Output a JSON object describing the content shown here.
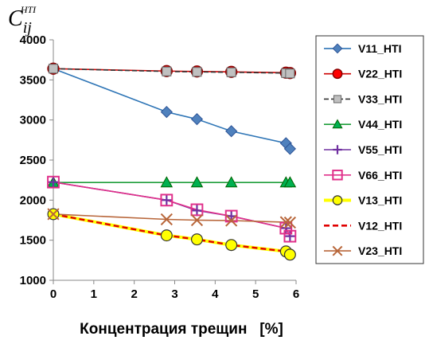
{
  "chart_data": {
    "type": "line",
    "ylabel": {
      "base": "C",
      "sub": "ij",
      "sup": "HTI"
    },
    "xlabel": "Концентрация трещин   [%]",
    "xlim": [
      0,
      6
    ],
    "ylim": [
      1000,
      4000
    ],
    "xticks": [
      0,
      1,
      2,
      3,
      4,
      5,
      6
    ],
    "yticks": [
      1000,
      1500,
      2000,
      2500,
      3000,
      3500,
      4000
    ],
    "grid": false,
    "legend_position": "right",
    "series": [
      {
        "name": "V11_HTI",
        "color": "#2e75b6",
        "marker": "diamond",
        "dash": "",
        "fill": "#4f81bd",
        "x": [
          0,
          2.8,
          3.55,
          4.4,
          5.75,
          5.85
        ],
        "y": [
          3640,
          3100,
          3010,
          2860,
          2710,
          2640
        ]
      },
      {
        "name": "V22_HTI",
        "color": "#cc0000",
        "marker": "circle",
        "dash": "",
        "fill": "#ff0000",
        "x": [
          0,
          2.8,
          3.55,
          4.4,
          5.75,
          5.85
        ],
        "y": [
          3640,
          3610,
          3605,
          3600,
          3590,
          3585
        ]
      },
      {
        "name": "V33_HTI",
        "color": "#333333",
        "marker": "square",
        "dash": "6,3",
        "fill": "#c0c0c0",
        "x": [
          0,
          2.8,
          3.55,
          4.4,
          5.75,
          5.85
        ],
        "y": [
          3640,
          3605,
          3600,
          3595,
          3585,
          3580
        ]
      },
      {
        "name": "V44_HTI",
        "color": "#1e9e3a",
        "marker": "triangle",
        "dash": "",
        "fill": "#00b050",
        "x": [
          0,
          2.8,
          3.55,
          4.4,
          5.75,
          5.85
        ],
        "y": [
          2220,
          2220,
          2220,
          2220,
          2220,
          2220
        ]
      },
      {
        "name": "V55_HTI",
        "color": "#7030a0",
        "marker": "plus",
        "dash": "",
        "fill": "#7030a0",
        "x": [
          0,
          2.8,
          3.55,
          4.4,
          5.75,
          5.85
        ],
        "y": [
          2225,
          2000,
          1870,
          1800,
          1650,
          1550
        ]
      },
      {
        "name": "V66_HTI",
        "color": "#e0308a",
        "marker": "opensquare",
        "dash": "",
        "fill": "none",
        "x": [
          0,
          2.8,
          3.55,
          4.4,
          5.75,
          5.85
        ],
        "y": [
          2225,
          2000,
          1880,
          1800,
          1650,
          1550
        ]
      },
      {
        "name": "V13_HTI",
        "color": "#ffff00",
        "marker": "yellowcircle",
        "dash": "",
        "fill": "#ffff00",
        "x": [
          0,
          2.8,
          3.55,
          4.4,
          5.75,
          5.85
        ],
        "y": [
          1825,
          1560,
          1510,
          1440,
          1360,
          1320
        ]
      },
      {
        "name": "V12_HTI",
        "color": "#e00000",
        "marker": "none",
        "dash": "7,4",
        "fill": "none",
        "x": [
          0,
          2.8,
          3.55,
          4.4,
          5.75,
          5.85
        ],
        "y": [
          1825,
          1560,
          1510,
          1440,
          1360,
          1330
        ]
      },
      {
        "name": "V23_HTI",
        "color": "#b8663a",
        "marker": "x",
        "dash": "",
        "fill": "none",
        "x": [
          0,
          2.8,
          3.55,
          4.4,
          5.75,
          5.85
        ],
        "y": [
          1825,
          1760,
          1750,
          1745,
          1725,
          1720
        ]
      }
    ]
  }
}
